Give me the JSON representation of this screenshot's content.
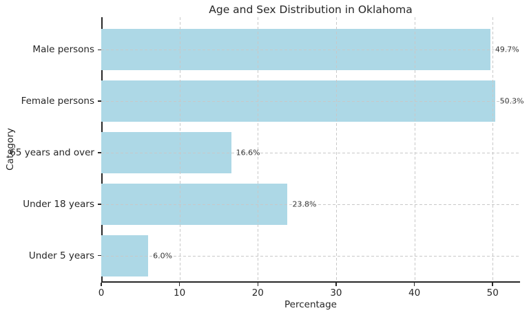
{
  "chart_data": {
    "type": "bar",
    "orientation": "horizontal",
    "title": "Age and Sex Distribution in Oklahoma",
    "xlabel": "Percentage",
    "ylabel": "Category",
    "categories": [
      "Male persons",
      "Female persons",
      "65 years and over",
      "Under 18 years",
      "Under 5 years"
    ],
    "values": [
      49.7,
      50.3,
      16.6,
      23.8,
      6.0
    ],
    "value_labels": [
      "49.7%",
      "50.3%",
      "16.6%",
      "23.8%",
      "6.0%"
    ],
    "xticks": [
      0,
      10,
      20,
      30,
      40,
      50
    ],
    "xlim": [
      0,
      53.5
    ],
    "grid": true,
    "grid_style": "dashed",
    "grid_over_bars": true,
    "legend": false,
    "bar_color": "#add8e6",
    "grid_color": "#c8c8c8",
    "axis_color": "#262626",
    "text_color": "#262626",
    "value_label_color": "#3a3a3a",
    "background": "#ffffff"
  }
}
